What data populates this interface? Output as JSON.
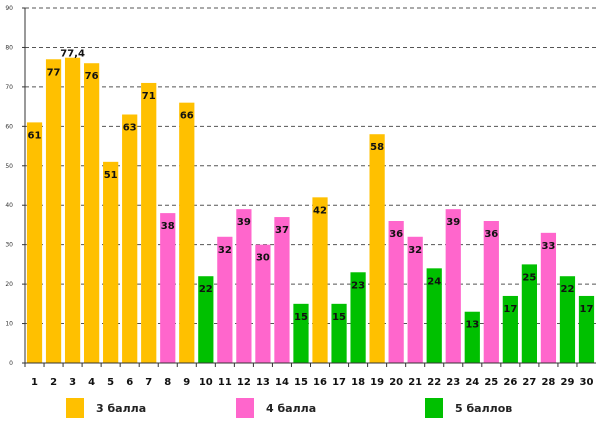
{
  "chart_data": {
    "type": "bar",
    "title": "",
    "xlabel": "",
    "ylabel": "",
    "ylim": [
      0,
      90
    ],
    "yticks": [
      "0",
      "10",
      "20",
      "30",
      "40",
      "50",
      "60",
      "70",
      "80",
      "90"
    ],
    "grid": true,
    "legend_position": "bottom",
    "categories": [
      "1",
      "2",
      "3",
      "4",
      "5",
      "6",
      "7",
      "8",
      "9",
      "10",
      "11",
      "12",
      "13",
      "14",
      "15",
      "16",
      "17",
      "18",
      "19",
      "20",
      "21",
      "22",
      "23",
      "24",
      "25",
      "26",
      "27",
      "28",
      "29",
      "30"
    ],
    "series": [
      {
        "name": "3 балла",
        "color": "#FFC000",
        "values": [
          61,
          77,
          77.4,
          76,
          51,
          63,
          71,
          null,
          66,
          null,
          null,
          null,
          null,
          null,
          null,
          42,
          null,
          null,
          58,
          null,
          null,
          null,
          null,
          null,
          null,
          null,
          null,
          null,
          null,
          null
        ]
      },
      {
        "name": "4 балла",
        "color": "#FF66CC",
        "values": [
          null,
          null,
          null,
          null,
          null,
          null,
          null,
          38,
          null,
          null,
          32,
          39,
          30,
          37,
          null,
          null,
          null,
          null,
          null,
          36,
          32,
          null,
          39,
          null,
          36,
          null,
          null,
          33,
          null,
          null
        ]
      },
      {
        "name": "5 баллов",
        "color": "#00C000",
        "values": [
          null,
          null,
          null,
          null,
          null,
          null,
          null,
          null,
          null,
          22,
          null,
          null,
          null,
          null,
          15,
          null,
          15,
          23,
          null,
          null,
          null,
          24,
          null,
          13,
          null,
          17,
          25,
          null,
          22,
          17
        ]
      }
    ],
    "data_labels": [
      "61",
      "77",
      "77,4",
      "76",
      "51",
      "63",
      "71",
      "38",
      "66",
      "22",
      "32",
      "39",
      "30",
      "37",
      "15",
      "42",
      "15",
      "23",
      "58",
      "36",
      "32",
      "24",
      "39",
      "13",
      "36",
      "17",
      "25",
      "33",
      "22",
      "17"
    ]
  }
}
